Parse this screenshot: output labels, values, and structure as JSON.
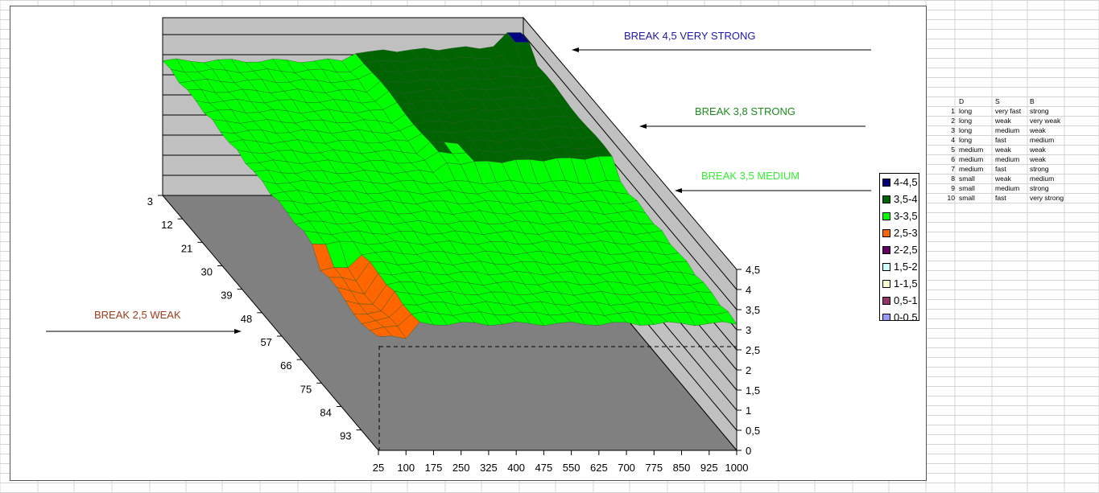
{
  "chart_data": {
    "type": "surface",
    "x_ticks": [
      "25",
      "100",
      "175",
      "250",
      "325",
      "400",
      "475",
      "550",
      "625",
      "700",
      "775",
      "850",
      "925",
      "1000"
    ],
    "y_ticks": [
      "3",
      "12",
      "21",
      "30",
      "39",
      "48",
      "57",
      "66",
      "75",
      "84",
      "93"
    ],
    "z_ticks": [
      "0",
      "0,5",
      "1",
      "1,5",
      "2",
      "2,5",
      "3",
      "3,5",
      "4",
      "4,5"
    ],
    "zlim": [
      0,
      4.5
    ],
    "legend": [
      {
        "label": "4-4,5",
        "color": "#000080"
      },
      {
        "label": "3,5-4",
        "color": "#006400"
      },
      {
        "label": "3-3,5",
        "color": "#00ff00"
      },
      {
        "label": "2,5-3",
        "color": "#ff6600"
      },
      {
        "label": "2-2,5",
        "color": "#660066"
      },
      {
        "label": "1,5-2",
        "color": "#ccffff"
      },
      {
        "label": "1-1,5",
        "color": "#ffffcc"
      },
      {
        "label": "0,5-1",
        "color": "#993366"
      },
      {
        "label": "0-0,5",
        "color": "#9999ff"
      }
    ],
    "annotations": [
      {
        "id": "very-strong",
        "text": "BREAK 4,5 VERY STRONG",
        "color": "#1a1aa6"
      },
      {
        "id": "strong",
        "text": "BREAK  3,8  STRONG",
        "color": "#1e8c1e"
      },
      {
        "id": "medium",
        "text": "BREAK 3,5 MEDIUM",
        "color": "#33ee33"
      },
      {
        "id": "weak",
        "text": "BREAK 2,5 WEAK",
        "color": "#9c3b1c"
      }
    ]
  },
  "table": {
    "headers": [
      "D",
      "S",
      "B"
    ],
    "rows": [
      {
        "n": "1",
        "d": "long",
        "s": "very fast",
        "b": "strong"
      },
      {
        "n": "2",
        "d": "long",
        "s": "weak",
        "b": "very weak"
      },
      {
        "n": "3",
        "d": "long",
        "s": "medium",
        "b": "weak"
      },
      {
        "n": "4",
        "d": "long",
        "s": "fast",
        "b": "medium"
      },
      {
        "n": "5",
        "d": "medium",
        "s": "weak",
        "b": "weak"
      },
      {
        "n": "6",
        "d": "medium",
        "s": "medium",
        "b": "weak"
      },
      {
        "n": "7",
        "d": "medium",
        "s": "fast",
        "b": "strong"
      },
      {
        "n": "8",
        "d": "small",
        "s": "weak",
        "b": "medium"
      },
      {
        "n": "9",
        "d": "small",
        "s": "medium",
        "b": "strong"
      },
      {
        "n": "10",
        "d": "small",
        "s": "fast",
        "b": "very strong"
      }
    ]
  }
}
